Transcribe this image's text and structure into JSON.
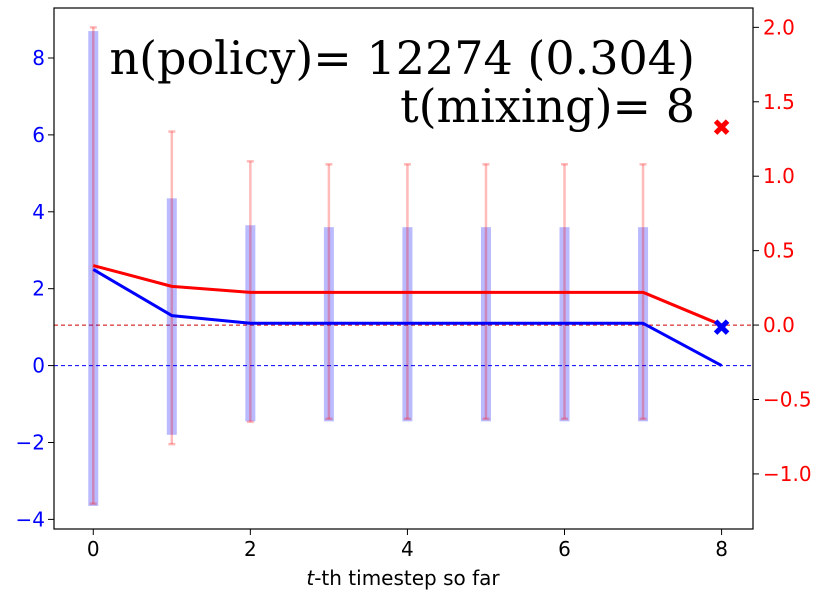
{
  "chart_data": {
    "type": "line",
    "xlabel_italic": "t",
    "xlabel_rest": "-th timestep so far",
    "annotation_line1": "n(policy)= 12274 (0.304)",
    "annotation_line2": "t(mixing)= 8",
    "x": [
      0,
      1,
      2,
      3,
      4,
      5,
      6,
      7,
      8
    ],
    "xlim": [
      -0.5,
      8.4
    ],
    "x_ticks": [
      0,
      2,
      4,
      6,
      8
    ],
    "left_axis": {
      "color": "#0000ff",
      "ylim": [
        -4.25,
        9.3
      ],
      "ticks": [
        -4,
        -2,
        0,
        2,
        4,
        6,
        8
      ],
      "reference_line": 0
    },
    "right_axis": {
      "color": "#ff0000",
      "ylim": [
        -1.37,
        2.13
      ],
      "ticks": [
        -1.0,
        -0.5,
        0.0,
        0.5,
        1.0,
        1.5,
        2.0
      ],
      "tick_labels": [
        "−1.0",
        "−0.5",
        "0.0",
        "0.5",
        "1.0",
        "1.5",
        "2.0"
      ],
      "reference_line": 0.0
    },
    "series": [
      {
        "axis": "left",
        "color": "#0000ff",
        "values": [
          2.5,
          1.3,
          1.1,
          1.1,
          1.1,
          1.1,
          1.1,
          1.1,
          0.0
        ],
        "band_low": [
          -3.65,
          -1.8,
          -1.45,
          -1.45,
          -1.45,
          -1.45,
          -1.45,
          -1.45
        ],
        "band_high": [
          8.7,
          4.35,
          3.65,
          3.6,
          3.6,
          3.6,
          3.6,
          3.6
        ],
        "end_marker": {
          "x": 8,
          "y": 1.0
        }
      },
      {
        "axis": "right",
        "color": "#ff0000",
        "values": [
          0.4,
          0.26,
          0.22,
          0.22,
          0.22,
          0.22,
          0.22,
          0.22,
          0.0
        ],
        "err_low": [
          -1.2,
          -0.8,
          -0.65,
          -0.63,
          -0.63,
          -0.63,
          -0.63,
          -0.63
        ],
        "err_high": [
          2.0,
          1.3,
          1.1,
          1.08,
          1.08,
          1.08,
          1.08,
          1.08
        ],
        "end_marker": {
          "x": 8,
          "y": 1.33
        }
      }
    ]
  }
}
